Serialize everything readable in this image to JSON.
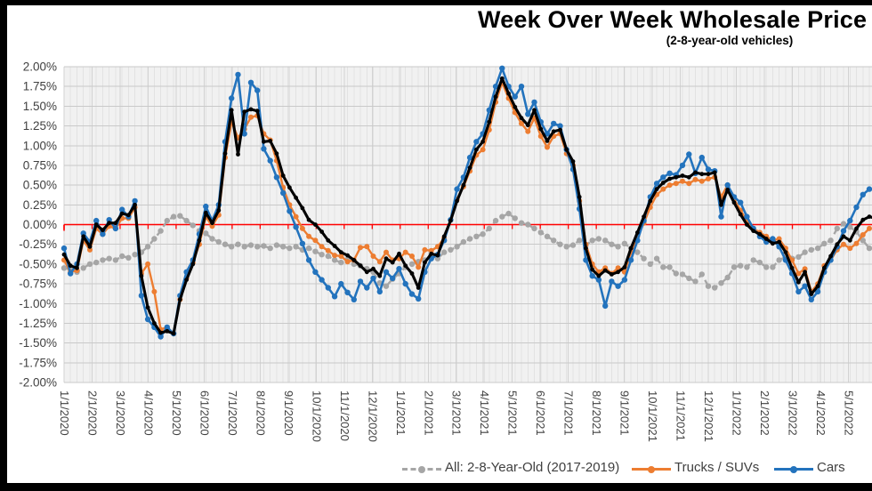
{
  "header": {
    "title": "Week Over Week Wholesale Price",
    "subtitle": "(2-8-year-old vehicles)"
  },
  "legend": [
    {
      "label": "All: 2-8-Year-Old (2017-2019)",
      "color": "#a6a6a6",
      "style": "dashed"
    },
    {
      "label": "Trucks / SUVs",
      "color": "#ed7d31",
      "style": "solid"
    },
    {
      "label": "Cars",
      "color": "#2373bd",
      "style": "solid"
    }
  ],
  "chart_data": {
    "type": "line",
    "title": "Week Over Week Wholesale Price",
    "subtitle": "(2-8-year-old vehicles)",
    "x_interval": "weekly points, monthly tick labels",
    "x_tick_labels": [
      "1/1/2020",
      "2/1/2020",
      "3/1/2020",
      "4/1/2020",
      "5/1/2020",
      "6/1/2020",
      "7/1/2020",
      "8/1/2020",
      "9/1/2020",
      "10/1/2020",
      "11/1/2020",
      "12/1/2020",
      "1/1/2021",
      "2/1/2021",
      "3/1/2021",
      "4/1/2021",
      "5/1/2021",
      "6/1/2021",
      "7/1/2021",
      "8/1/2021",
      "9/1/2021",
      "10/1/2021",
      "11/1/2021",
      "12/1/2021",
      "1/1/2022",
      "2/1/2022",
      "3/1/2022",
      "4/1/2022",
      "5/1/2022"
    ],
    "y_tick_labels": [
      "2.00%",
      "1.75%",
      "1.50%",
      "1.25%",
      "1.00%",
      "0.75%",
      "0.50%",
      "0.25%",
      "0.00%",
      "-0.25%",
      "-0.50%",
      "-0.75%",
      "-1.00%",
      "-1.25%",
      "-1.50%",
      "-1.75%",
      "-2.00%"
    ],
    "ylim": [
      -2.0,
      2.0
    ],
    "y_tick_step": 0.25,
    "grid": true,
    "zero_line_color": "#ff0000",
    "legend_position": "bottom",
    "series": [
      {
        "name": "All: 2-8-Year-Old (2017-2019)",
        "color": "#a6a6a6",
        "dashed": true,
        "legend_visible": true,
        "values": [
          -0.55,
          -0.57,
          -0.6,
          -0.55,
          -0.5,
          -0.48,
          -0.45,
          -0.43,
          -0.45,
          -0.4,
          -0.42,
          -0.38,
          -0.35,
          -0.28,
          -0.18,
          -0.08,
          0.05,
          0.1,
          0.11,
          0.05,
          -0.01,
          -0.08,
          -0.11,
          -0.18,
          -0.22,
          -0.25,
          -0.28,
          -0.25,
          -0.28,
          -0.26,
          -0.28,
          -0.27,
          -0.3,
          -0.26,
          -0.28,
          -0.3,
          -0.28,
          -0.32,
          -0.3,
          -0.34,
          -0.38,
          -0.4,
          -0.45,
          -0.48,
          -0.44,
          -0.5,
          -0.52,
          -0.56,
          -0.6,
          -0.74,
          -0.78,
          -0.69,
          -0.62,
          -0.54,
          -0.5,
          -0.47,
          -0.45,
          -0.39,
          -0.43,
          -0.35,
          -0.32,
          -0.28,
          -0.22,
          -0.18,
          -0.15,
          -0.12,
          -0.05,
          0.05,
          0.1,
          0.14,
          0.08,
          0.02,
          0.0,
          -0.05,
          -0.1,
          -0.15,
          -0.2,
          -0.25,
          -0.28,
          -0.26,
          -0.2,
          -0.26,
          -0.2,
          -0.18,
          -0.2,
          -0.25,
          -0.28,
          -0.24,
          -0.3,
          -0.35,
          -0.43,
          -0.5,
          -0.43,
          -0.54,
          -0.54,
          -0.62,
          -0.63,
          -0.68,
          -0.72,
          -0.63,
          -0.78,
          -0.8,
          -0.74,
          -0.67,
          -0.54,
          -0.52,
          -0.54,
          -0.45,
          -0.48,
          -0.54,
          -0.54,
          -0.45,
          -0.41,
          -0.43,
          -0.41,
          -0.35,
          -0.32,
          -0.3,
          -0.24,
          -0.2,
          -0.05,
          0.01,
          -0.03,
          -0.09,
          -0.2,
          -0.3
        ]
      },
      {
        "name": "Trucks / SUVs",
        "color": "#ed7d31",
        "dashed": false,
        "legend_visible": true,
        "values": [
          -0.45,
          -0.6,
          -0.58,
          -0.2,
          -0.32,
          -0.05,
          -0.12,
          -0.02,
          -0.05,
          0.08,
          0.08,
          0.22,
          -0.62,
          -0.5,
          -0.85,
          -1.33,
          -1.3,
          -1.38,
          -0.95,
          -0.68,
          -0.48,
          -0.25,
          0.1,
          -0.02,
          0.12,
          0.85,
          1.3,
          1.1,
          1.21,
          1.36,
          1.38,
          1.15,
          1.07,
          0.81,
          0.47,
          0.25,
          0.1,
          -0.05,
          -0.15,
          -0.2,
          -0.28,
          -0.33,
          -0.39,
          -0.4,
          -0.47,
          -0.45,
          -0.29,
          -0.28,
          -0.4,
          -0.47,
          -0.35,
          -0.45,
          -0.43,
          -0.35,
          -0.4,
          -0.54,
          -0.32,
          -0.33,
          -0.28,
          -0.17,
          0.06,
          0.32,
          0.48,
          0.68,
          0.88,
          0.95,
          1.2,
          1.55,
          1.8,
          1.6,
          1.42,
          1.28,
          1.18,
          1.35,
          1.12,
          0.98,
          1.12,
          1.15,
          0.9,
          0.75,
          0.3,
          -0.25,
          -0.5,
          -0.6,
          -0.55,
          -0.62,
          -0.55,
          -0.6,
          -0.35,
          -0.15,
          0.02,
          0.22,
          0.38,
          0.45,
          0.5,
          0.52,
          0.55,
          0.52,
          0.57,
          0.55,
          0.58,
          0.6,
          0.35,
          0.5,
          0.32,
          0.18,
          0.05,
          -0.05,
          -0.1,
          -0.15,
          -0.2,
          -0.18,
          -0.3,
          -0.45,
          -0.62,
          -0.56,
          -0.85,
          -0.75,
          -0.52,
          -0.45,
          -0.32,
          -0.25,
          -0.3,
          -0.24,
          -0.13,
          -0.05
        ]
      },
      {
        "name": "Cars",
        "color": "#2373bd",
        "dashed": false,
        "legend_visible": true,
        "values": [
          -0.3,
          -0.62,
          -0.5,
          -0.11,
          -0.22,
          0.05,
          -0.12,
          0.06,
          -0.05,
          0.19,
          0.1,
          0.3,
          -0.9,
          -1.2,
          -1.3,
          -1.42,
          -1.3,
          -1.38,
          -0.9,
          -0.6,
          -0.45,
          -0.12,
          0.23,
          0.05,
          0.25,
          1.05,
          1.6,
          1.9,
          1.15,
          1.8,
          1.7,
          0.96,
          0.81,
          0.6,
          0.4,
          0.17,
          -0.03,
          -0.24,
          -0.45,
          -0.6,
          -0.7,
          -0.8,
          -0.91,
          -0.75,
          -0.86,
          -0.95,
          -0.72,
          -0.8,
          -0.68,
          -0.85,
          -0.6,
          -0.68,
          -0.56,
          -0.75,
          -0.88,
          -0.94,
          -0.6,
          -0.43,
          -0.38,
          -0.2,
          0.06,
          0.45,
          0.6,
          0.85,
          1.05,
          1.15,
          1.45,
          1.75,
          1.98,
          1.75,
          1.62,
          1.75,
          1.4,
          1.55,
          1.3,
          1.15,
          1.28,
          1.25,
          0.95,
          0.7,
          0.2,
          -0.45,
          -0.65,
          -0.7,
          -1.03,
          -0.72,
          -0.78,
          -0.7,
          -0.45,
          -0.2,
          0.05,
          0.35,
          0.52,
          0.6,
          0.65,
          0.63,
          0.75,
          0.89,
          0.65,
          0.85,
          0.7,
          0.68,
          0.1,
          0.5,
          0.35,
          0.28,
          0.1,
          -0.05,
          -0.15,
          -0.22,
          -0.18,
          -0.28,
          -0.45,
          -0.62,
          -0.85,
          -0.78,
          -0.95,
          -0.85,
          -0.6,
          -0.45,
          -0.28,
          -0.08,
          0.05,
          0.22,
          0.38,
          0.45
        ]
      },
      {
        "name": "",
        "color": "#000000",
        "dashed": false,
        "legend_visible": false,
        "values": [
          -0.38,
          -0.52,
          -0.55,
          -0.15,
          -0.28,
          0.0,
          -0.07,
          0.02,
          0.02,
          0.14,
          0.12,
          0.25,
          -0.65,
          -1.05,
          -1.25,
          -1.37,
          -1.35,
          -1.38,
          -0.95,
          -0.7,
          -0.5,
          -0.2,
          0.15,
          0.02,
          0.18,
          0.9,
          1.45,
          0.89,
          1.43,
          1.46,
          1.44,
          1.05,
          1.06,
          0.9,
          0.62,
          0.47,
          0.34,
          0.21,
          0.06,
          0.0,
          -0.09,
          -0.2,
          -0.27,
          -0.35,
          -0.39,
          -0.45,
          -0.52,
          -0.6,
          -0.56,
          -0.65,
          -0.43,
          -0.48,
          -0.37,
          -0.52,
          -0.62,
          -0.8,
          -0.48,
          -0.37,
          -0.39,
          -0.15,
          0.05,
          0.3,
          0.5,
          0.72,
          0.95,
          1.05,
          1.3,
          1.62,
          1.85,
          1.66,
          1.49,
          1.35,
          1.26,
          1.45,
          1.21,
          1.06,
          1.18,
          1.2,
          0.95,
          0.8,
          0.35,
          -0.3,
          -0.57,
          -0.65,
          -0.58,
          -0.63,
          -0.6,
          -0.54,
          -0.3,
          -0.1,
          0.1,
          0.3,
          0.45,
          0.53,
          0.58,
          0.6,
          0.62,
          0.6,
          0.66,
          0.64,
          0.64,
          0.66,
          0.25,
          0.44,
          0.28,
          0.13,
          0.0,
          -0.08,
          -0.12,
          -0.18,
          -0.24,
          -0.22,
          -0.35,
          -0.55,
          -0.73,
          -0.6,
          -0.88,
          -0.78,
          -0.55,
          -0.4,
          -0.25,
          -0.15,
          -0.2,
          -0.05,
          0.06,
          0.1,
          0.08
        ]
      }
    ]
  },
  "colors": {
    "grid": "#c9c9c9",
    "plot_bg": "#f1f1f1",
    "week_stripe": "#e2e2e2",
    "month_line": "#d2d2d2",
    "axis_text": "#404040",
    "zero_line": "#ff0000"
  }
}
